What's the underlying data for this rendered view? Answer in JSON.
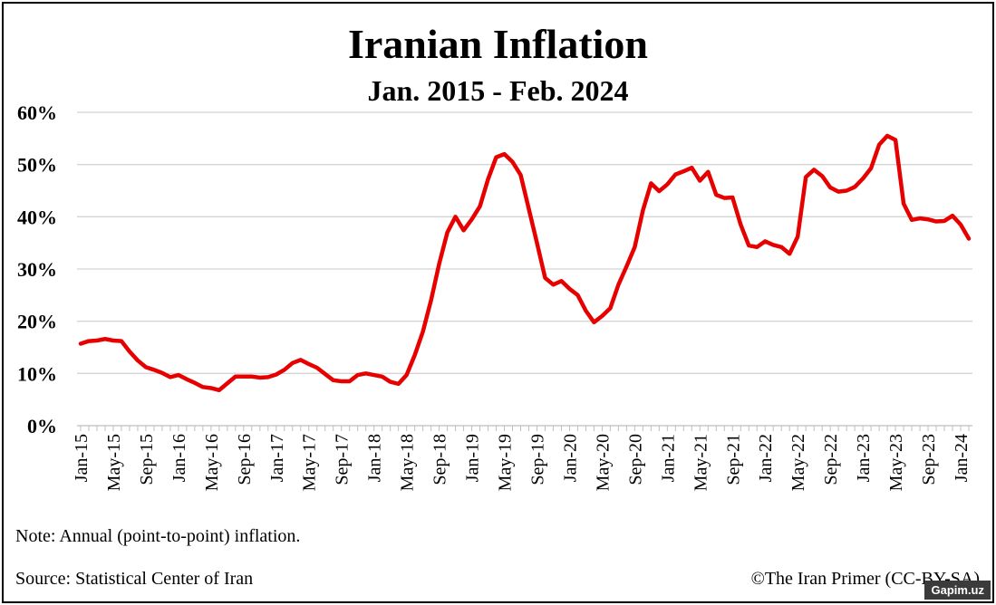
{
  "header": {
    "title": "Iranian Inflation",
    "subtitle": "Jan. 2015 - Feb. 2024"
  },
  "footer": {
    "note": "Note: Annual (point-to-point) inflation.",
    "source": "Source: Statistical Center of Iran",
    "credit": "©The Iran Primer (CC-BY-SA)"
  },
  "watermark": "Gapim.uz",
  "chart_data": {
    "type": "line",
    "title": "Iranian Inflation",
    "subtitle": "Jan. 2015 - Feb. 2024",
    "ylim": [
      0,
      60
    ],
    "yticks": [
      0,
      10,
      20,
      30,
      40,
      50,
      60
    ],
    "ytick_labels": [
      "0%",
      "10%",
      "20%",
      "30%",
      "40%",
      "50%",
      "60%"
    ],
    "grid": "horizontal",
    "legend": "none",
    "line_color": "#e60000",
    "x_start": "Jan-15",
    "x_end": "Feb-24",
    "x_labels": [
      "Jan-15",
      "May-15",
      "Sep-15",
      "Jan-16",
      "May-16",
      "Sep-16",
      "Jan-17",
      "May-17",
      "Sep-17",
      "Jan-18",
      "May-18",
      "Sep-18",
      "Jan-19",
      "May-19",
      "Sep-19",
      "Jan-20",
      "May-20",
      "Sep-20",
      "Jan-21",
      "May-21",
      "Sep-21",
      "Jan-22",
      "May-22",
      "Sep-22",
      "Jan-23",
      "May-23",
      "Sep-23",
      "Jan-24"
    ],
    "series": [
      {
        "values": [
          15.7,
          16.2,
          16.3,
          16.6,
          16.3,
          16.2,
          14.2,
          12.5,
          11.2,
          10.7,
          10.1,
          9.3,
          9.7,
          8.9,
          8.2,
          7.4,
          7.2,
          6.8,
          8.1,
          9.4,
          9.4,
          9.4,
          9.2,
          9.3,
          9.8,
          10.7,
          12.0,
          12.6,
          11.8,
          11.1,
          9.9,
          8.7,
          8.5,
          8.5,
          9.7,
          10.0,
          9.7,
          9.4,
          8.4,
          8.0,
          9.7,
          13.5,
          18.0,
          24.0,
          31.0,
          37.0,
          40.0,
          37.4,
          39.5,
          42.0,
          47.2,
          51.4,
          52.0,
          50.5,
          48.0,
          41.5,
          35.0,
          28.3,
          27.0,
          27.7,
          26.2,
          25.0,
          22.0,
          19.8,
          21.0,
          22.5,
          27.0,
          30.5,
          34.2,
          41.2,
          46.4,
          44.9,
          46.2,
          48.1,
          48.7,
          49.4,
          46.9,
          48.6,
          44.2,
          43.6,
          43.7,
          38.5,
          34.5,
          34.2,
          35.3,
          34.6,
          34.2,
          32.9,
          36.2,
          47.6,
          49.0,
          47.8,
          45.6,
          44.8,
          45.0,
          45.7,
          47.3,
          49.3,
          53.8,
          55.5,
          54.7,
          42.5,
          39.4,
          39.7,
          39.5,
          39.1,
          39.2,
          40.2,
          38.5,
          35.8
        ]
      }
    ]
  }
}
